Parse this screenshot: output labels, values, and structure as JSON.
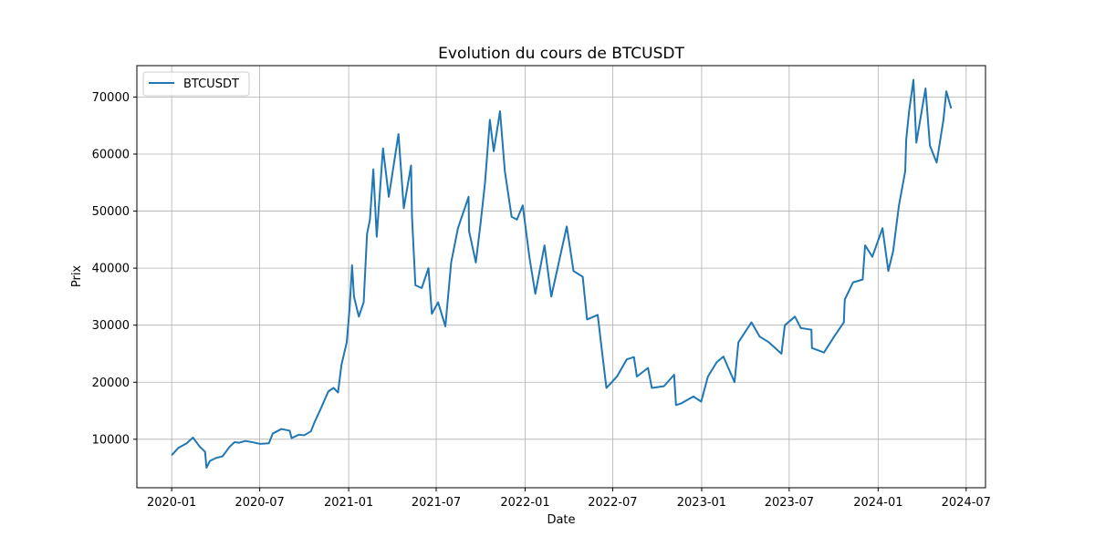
{
  "chart_data": {
    "type": "line",
    "title": "Evolution du cours de BTCUSDT",
    "xlabel": "Date",
    "ylabel": "Prix",
    "grid": true,
    "legend_position": "top-left",
    "x_tick_labels": [
      "2020-01",
      "2020-07",
      "2021-01",
      "2021-07",
      "2022-01",
      "2022-07",
      "2023-01",
      "2023-07",
      "2024-01",
      "2024-07"
    ],
    "y_tick_labels": [
      "10000",
      "20000",
      "30000",
      "40000",
      "50000",
      "60000",
      "70000"
    ],
    "xlim": [
      "2019-10-21",
      "2024-08-10"
    ],
    "ylim": [
      1500,
      75500
    ],
    "series": [
      {
        "name": "BTCUSDT",
        "color": "#1f77b4",
        "points": [
          [
            "2020-01-01",
            7200
          ],
          [
            "2020-01-15",
            8500
          ],
          [
            "2020-02-01",
            9300
          ],
          [
            "2020-02-14",
            10300
          ],
          [
            "2020-02-28",
            8700
          ],
          [
            "2020-03-10",
            7800
          ],
          [
            "2020-03-13",
            5000
          ],
          [
            "2020-03-20",
            6200
          ],
          [
            "2020-04-01",
            6700
          ],
          [
            "2020-04-15",
            7000
          ],
          [
            "2020-04-30",
            8700
          ],
          [
            "2020-05-10",
            9500
          ],
          [
            "2020-05-20",
            9400
          ],
          [
            "2020-06-01",
            9700
          ],
          [
            "2020-06-15",
            9500
          ],
          [
            "2020-07-01",
            9200
          ],
          [
            "2020-07-20",
            9300
          ],
          [
            "2020-07-28",
            11000
          ],
          [
            "2020-08-15",
            11800
          ],
          [
            "2020-09-01",
            11500
          ],
          [
            "2020-09-05",
            10200
          ],
          [
            "2020-09-20",
            10800
          ],
          [
            "2020-10-01",
            10700
          ],
          [
            "2020-10-15",
            11400
          ],
          [
            "2020-10-22",
            12900
          ],
          [
            "2020-11-05",
            15500
          ],
          [
            "2020-11-20",
            18400
          ],
          [
            "2020-12-01",
            19000
          ],
          [
            "2020-12-10",
            18200
          ],
          [
            "2020-12-17",
            23000
          ],
          [
            "2020-12-28",
            27000
          ],
          [
            "2021-01-03",
            33000
          ],
          [
            "2021-01-08",
            40500
          ],
          [
            "2021-01-12",
            35000
          ],
          [
            "2021-01-22",
            31500
          ],
          [
            "2021-02-01",
            34000
          ],
          [
            "2021-02-08",
            46000
          ],
          [
            "2021-02-14",
            48500
          ],
          [
            "2021-02-21",
            57300
          ],
          [
            "2021-02-28",
            45500
          ],
          [
            "2021-03-13",
            61000
          ],
          [
            "2021-03-25",
            52500
          ],
          [
            "2021-04-14",
            63500
          ],
          [
            "2021-04-25",
            50500
          ],
          [
            "2021-05-10",
            58000
          ],
          [
            "2021-05-12",
            49000
          ],
          [
            "2021-05-19",
            37000
          ],
          [
            "2021-06-01",
            36500
          ],
          [
            "2021-06-15",
            40000
          ],
          [
            "2021-06-22",
            32000
          ],
          [
            "2021-07-05",
            34000
          ],
          [
            "2021-07-20",
            29800
          ],
          [
            "2021-08-01",
            41000
          ],
          [
            "2021-08-15",
            47000
          ],
          [
            "2021-09-06",
            52500
          ],
          [
            "2021-09-07",
            46500
          ],
          [
            "2021-09-21",
            41000
          ],
          [
            "2021-10-01",
            48000
          ],
          [
            "2021-10-10",
            55000
          ],
          [
            "2021-10-20",
            66000
          ],
          [
            "2021-10-28",
            60500
          ],
          [
            "2021-11-10",
            67500
          ],
          [
            "2021-11-20",
            57000
          ],
          [
            "2021-12-04",
            49000
          ],
          [
            "2021-12-15",
            48500
          ],
          [
            "2021-12-27",
            51000
          ],
          [
            "2022-01-10",
            41800
          ],
          [
            "2022-01-22",
            35500
          ],
          [
            "2022-02-10",
            44000
          ],
          [
            "2022-02-24",
            35000
          ],
          [
            "2022-03-28",
            47300
          ],
          [
            "2022-04-11",
            39500
          ],
          [
            "2022-04-30",
            38500
          ],
          [
            "2022-05-09",
            31000
          ],
          [
            "2022-05-31",
            31800
          ],
          [
            "2022-06-13",
            22500
          ],
          [
            "2022-06-18",
            19000
          ],
          [
            "2022-07-10",
            21000
          ],
          [
            "2022-07-30",
            24000
          ],
          [
            "2022-08-14",
            24400
          ],
          [
            "2022-08-20",
            21000
          ],
          [
            "2022-09-12",
            22500
          ],
          [
            "2022-09-20",
            19000
          ],
          [
            "2022-10-15",
            19300
          ],
          [
            "2022-11-05",
            21300
          ],
          [
            "2022-11-09",
            16000
          ],
          [
            "2022-11-20",
            16300
          ],
          [
            "2022-12-15",
            17500
          ],
          [
            "2022-12-31",
            16600
          ],
          [
            "2023-01-14",
            21000
          ],
          [
            "2023-02-01",
            23500
          ],
          [
            "2023-02-15",
            24500
          ],
          [
            "2023-03-10",
            20000
          ],
          [
            "2023-03-18",
            27000
          ],
          [
            "2023-04-14",
            30500
          ],
          [
            "2023-05-01",
            28000
          ],
          [
            "2023-05-20",
            27000
          ],
          [
            "2023-06-15",
            25000
          ],
          [
            "2023-06-22",
            30000
          ],
          [
            "2023-07-13",
            31500
          ],
          [
            "2023-07-25",
            29500
          ],
          [
            "2023-08-16",
            29200
          ],
          [
            "2023-08-17",
            26000
          ],
          [
            "2023-09-11",
            25200
          ],
          [
            "2023-10-02",
            28000
          ],
          [
            "2023-10-22",
            30500
          ],
          [
            "2023-10-24",
            34500
          ],
          [
            "2023-11-10",
            37500
          ],
          [
            "2023-11-30",
            38000
          ],
          [
            "2023-12-05",
            44000
          ],
          [
            "2023-12-20",
            42000
          ],
          [
            "2024-01-10",
            47000
          ],
          [
            "2024-01-22",
            39500
          ],
          [
            "2024-02-01",
            43000
          ],
          [
            "2024-02-13",
            51000
          ],
          [
            "2024-02-26",
            57000
          ],
          [
            "2024-02-28",
            62500
          ],
          [
            "2024-03-05",
            67500
          ],
          [
            "2024-03-14",
            73000
          ],
          [
            "2024-03-20",
            62000
          ],
          [
            "2024-04-08",
            71500
          ],
          [
            "2024-04-17",
            61500
          ],
          [
            "2024-05-01",
            58500
          ],
          [
            "2024-05-15",
            66000
          ],
          [
            "2024-05-21",
            71000
          ],
          [
            "2024-05-31",
            68000
          ]
        ]
      }
    ]
  }
}
